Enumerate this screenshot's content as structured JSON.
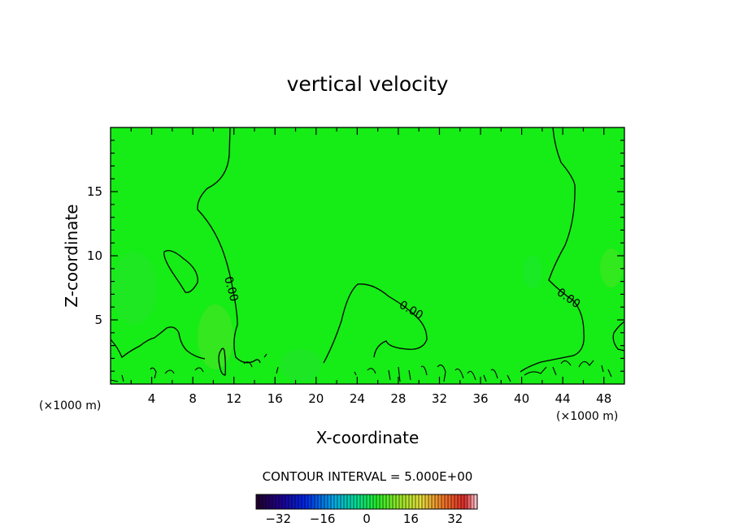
{
  "chart_data": {
    "type": "contour",
    "title": "vertical velocity",
    "xlabel": "X-coordinate",
    "ylabel": "Z-coordinate",
    "x_unit": "(×1000 m)",
    "x_unit_right": "(×1000 m)",
    "xlim": [
      0,
      50
    ],
    "ylim": [
      0,
      20
    ],
    "x_ticks": [
      4,
      8,
      12,
      16,
      20,
      24,
      28,
      32,
      36,
      40,
      44,
      48
    ],
    "y_ticks": [
      5,
      10,
      15
    ],
    "contour_label": "0.00",
    "contour_interval_text": "CONTOUR INTERVAL = 5.000E+00",
    "colorbar": {
      "min": -40,
      "max": 40,
      "ticks": [
        -32,
        -16,
        0,
        16,
        32
      ],
      "tick_labels": [
        "−32",
        "−16",
        "0",
        "16",
        "32"
      ]
    },
    "fill_color": "#16ec16",
    "contour_color": "#000000"
  }
}
